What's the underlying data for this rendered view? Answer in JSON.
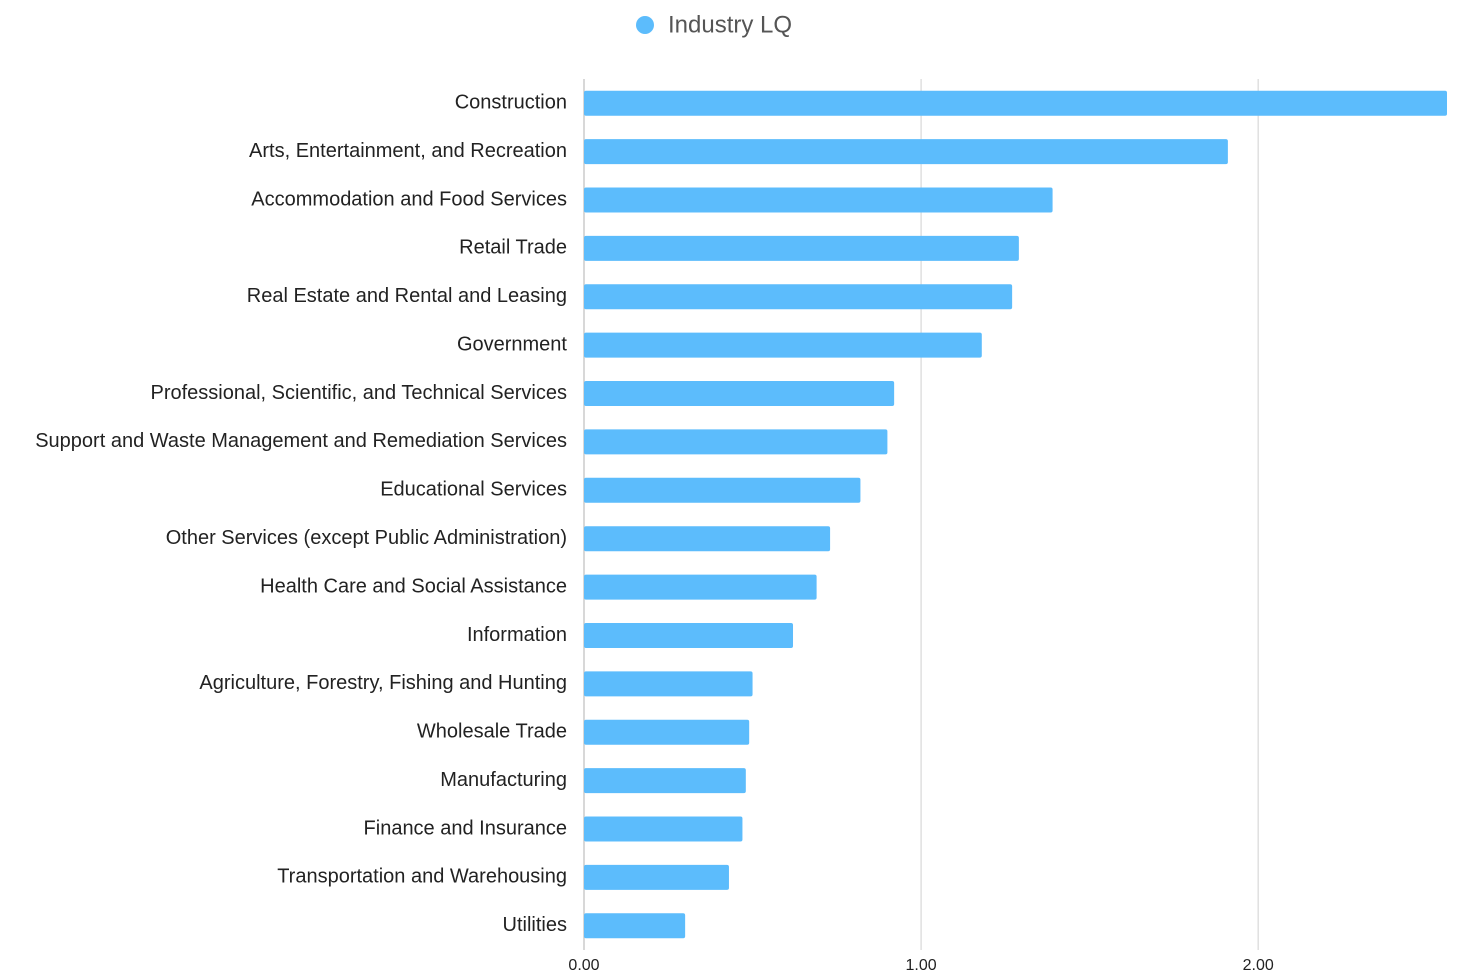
{
  "chart_data": {
    "type": "bar",
    "orientation": "horizontal",
    "series": [
      {
        "name": "Industry LQ",
        "color": "#5cbcfc",
        "values": [
          2.56,
          1.91,
          1.39,
          1.29,
          1.27,
          1.18,
          0.92,
          0.9,
          0.82,
          0.73,
          0.69,
          0.62,
          0.5,
          0.49,
          0.48,
          0.47,
          0.43,
          0.3
        ]
      }
    ],
    "categories": [
      "Construction",
      "Arts, Entertainment, and Recreation",
      "Accommodation and Food Services",
      "Retail Trade",
      "Real Estate and Rental and Leasing",
      "Government",
      "Professional, Scientific, and Technical Services",
      "Support and Waste Management and Remediation Services",
      "Educational Services",
      "Other Services (except Public Administration)",
      "Health Care and Social Assistance",
      "Information",
      "Agriculture, Forestry, Fishing and Hunting",
      "Wholesale Trade",
      "Manufacturing",
      "Finance and Insurance",
      "Transportation and Warehousing",
      "Utilities"
    ],
    "xlim": [
      0,
      2.56
    ],
    "xticks": [
      {
        "value": 0,
        "label": "0.00"
      },
      {
        "value": 1,
        "label": "1.00"
      },
      {
        "value": 2,
        "label": "2.00"
      }
    ],
    "grid": true,
    "legend": "top"
  }
}
